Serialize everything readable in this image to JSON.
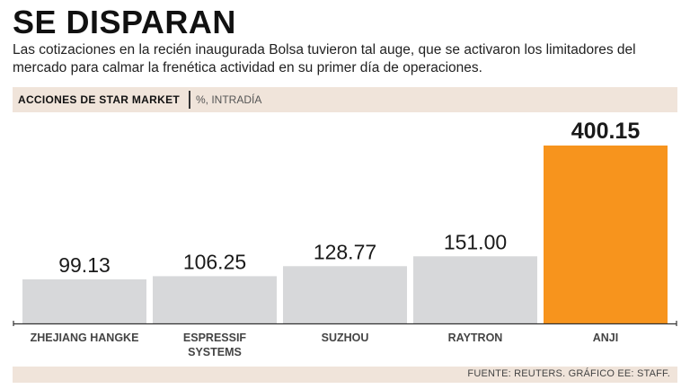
{
  "header": {
    "title": "SE DISPARAN",
    "subtitle": "Las cotizaciones en la recién inaugurada Bolsa tuvieron tal auge, que se activaron los limitadores del mercado para calmar la frenética actividad en su primer día de operaciones."
  },
  "band": {
    "label": "ACCIONES DE STAR MARKET",
    "unit": "%, INTRADÍA"
  },
  "footer": {
    "source": "FUENTE: REUTERS. GRÁFICO EE: STAFF."
  },
  "colors": {
    "bar_default": "#d7d8da",
    "bar_highlight": "#f7941d",
    "band_bg": "#f0e4da"
  },
  "chart_data": {
    "type": "bar",
    "title": "ACCIONES DE STAR MARKET",
    "ylabel": "%, INTRADÍA",
    "xlabel": "",
    "ylim": [
      0,
      400.15
    ],
    "categories": [
      "ZHEJIANG HANGKE",
      "ESPRESSIF SYSTEMS",
      "SUZHOU",
      "RAYTRON",
      "ANJI"
    ],
    "category_lines": [
      [
        "ZHEJIANG HANGKE"
      ],
      [
        "ESPRESSIF",
        "SYSTEMS"
      ],
      [
        "SUZHOU"
      ],
      [
        "RAYTRON"
      ],
      [
        "ANJI"
      ]
    ],
    "values": [
      99.13,
      106.25,
      128.77,
      151.0,
      400.15
    ],
    "value_labels": [
      "99.13",
      "106.25",
      "128.77",
      "151.00",
      "400.15"
    ],
    "highlight": "ANJI",
    "grid": false
  }
}
